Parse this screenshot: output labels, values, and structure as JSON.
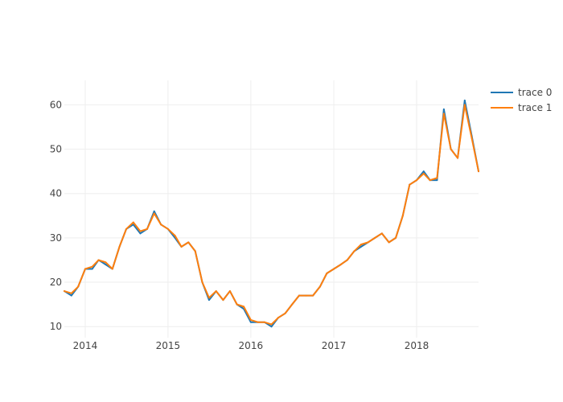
{
  "chart_data": {
    "type": "line",
    "title": "",
    "xlabel": "",
    "ylabel": "",
    "xlim": [
      "2013-10-01",
      "2018-10-01"
    ],
    "ylim": [
      7.5,
      65.5
    ],
    "grid": true,
    "legend_position": "top-right",
    "x_ticks": [
      {
        "label": "2014",
        "date": "2014-01-01"
      },
      {
        "label": "2015",
        "date": "2015-01-01"
      },
      {
        "label": "2016",
        "date": "2016-01-01"
      },
      {
        "label": "2017",
        "date": "2017-01-01"
      },
      {
        "label": "2018",
        "date": "2018-01-01"
      }
    ],
    "y_ticks": [
      10,
      20,
      30,
      40,
      50,
      60
    ],
    "series": [
      {
        "name": "trace 0",
        "color": "#1f77b4",
        "x": [
          "2013-10-01",
          "2013-11-01",
          "2013-12-01",
          "2014-01-01",
          "2014-02-01",
          "2014-03-01",
          "2014-04-01",
          "2014-05-01",
          "2014-06-01",
          "2014-07-01",
          "2014-08-01",
          "2014-09-01",
          "2014-10-01",
          "2014-11-01",
          "2014-12-01",
          "2015-01-01",
          "2015-02-01",
          "2015-03-01",
          "2015-04-01",
          "2015-05-01",
          "2015-06-01",
          "2015-07-01",
          "2015-08-01",
          "2015-09-01",
          "2015-10-01",
          "2015-11-01",
          "2015-12-01",
          "2016-01-01",
          "2016-02-01",
          "2016-03-01",
          "2016-04-01",
          "2016-05-01",
          "2016-06-01",
          "2016-07-01",
          "2016-08-01",
          "2016-09-01",
          "2016-10-01",
          "2016-11-01",
          "2016-12-01",
          "2017-01-01",
          "2017-02-01",
          "2017-03-01",
          "2017-04-01",
          "2017-05-01",
          "2017-06-01",
          "2017-07-01",
          "2017-08-01",
          "2017-09-01",
          "2017-10-01",
          "2017-11-01",
          "2017-12-01",
          "2018-01-01",
          "2018-02-01",
          "2018-03-01",
          "2018-04-01",
          "2018-05-01",
          "2018-06-01",
          "2018-07-01",
          "2018-08-01",
          "2018-09-01",
          "2018-10-01"
        ],
        "y": [
          18,
          17,
          19,
          23,
          23,
          25,
          24,
          23,
          28,
          32,
          33,
          31,
          32,
          36,
          33,
          32,
          30,
          28,
          29,
          27,
          20,
          16,
          18,
          16,
          18,
          15,
          14,
          11,
          11,
          11,
          10,
          12,
          13,
          15,
          17,
          17,
          17,
          19,
          22,
          23,
          24,
          25,
          27,
          28,
          29,
          30,
          31,
          29,
          30,
          35,
          42,
          43,
          45,
          43,
          43,
          59,
          50,
          48,
          61,
          53,
          45
        ]
      },
      {
        "name": "trace 1",
        "color": "#ff7f0e",
        "x": [
          "2013-10-01",
          "2013-11-01",
          "2013-12-01",
          "2014-01-01",
          "2014-02-01",
          "2014-03-01",
          "2014-04-01",
          "2014-05-01",
          "2014-06-01",
          "2014-07-01",
          "2014-08-01",
          "2014-09-01",
          "2014-10-01",
          "2014-11-01",
          "2014-12-01",
          "2015-01-01",
          "2015-02-01",
          "2015-03-01",
          "2015-04-01",
          "2015-05-01",
          "2015-06-01",
          "2015-07-01",
          "2015-08-01",
          "2015-09-01",
          "2015-10-01",
          "2015-11-01",
          "2015-12-01",
          "2016-01-01",
          "2016-02-01",
          "2016-03-01",
          "2016-04-01",
          "2016-05-01",
          "2016-06-01",
          "2016-07-01",
          "2016-08-01",
          "2016-09-01",
          "2016-10-01",
          "2016-11-01",
          "2016-12-01",
          "2017-01-01",
          "2017-02-01",
          "2017-03-01",
          "2017-04-01",
          "2017-05-01",
          "2017-06-01",
          "2017-07-01",
          "2017-08-01",
          "2017-09-01",
          "2017-10-01",
          "2017-11-01",
          "2017-12-01",
          "2018-01-01",
          "2018-02-01",
          "2018-03-01",
          "2018-04-01",
          "2018-05-01",
          "2018-06-01",
          "2018-07-01",
          "2018-08-01",
          "2018-09-01",
          "2018-10-01"
        ],
        "y": [
          18,
          17.5,
          19,
          23,
          23.5,
          25,
          24.5,
          23,
          28,
          32,
          33.5,
          31.5,
          32,
          35.5,
          33,
          32,
          30.5,
          28,
          29,
          27,
          20,
          16.5,
          18,
          16,
          18,
          15,
          14.5,
          11.5,
          11,
          11,
          10.5,
          12,
          13,
          15,
          17,
          17,
          17,
          19,
          22,
          23,
          24,
          25,
          27,
          28.5,
          29,
          30,
          31,
          29,
          30,
          35,
          42,
          43,
          44.5,
          43,
          43.5,
          58,
          50,
          48,
          60,
          52.5,
          45
        ]
      }
    ]
  }
}
